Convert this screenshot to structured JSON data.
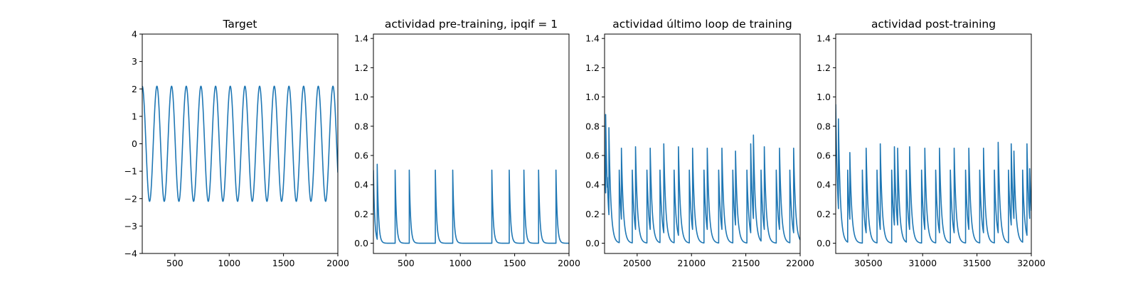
{
  "chart_data": [
    {
      "type": "line",
      "title": "Target",
      "xlabel": "",
      "ylabel": "",
      "xlim": [
        200,
        2000
      ],
      "ylim": [
        -4,
        4
      ],
      "xticks": [
        500,
        1000,
        1500,
        2000
      ],
      "yticks": [
        -4,
        -3,
        -2,
        -1,
        0,
        1,
        2,
        3,
        4
      ],
      "grid": false,
      "series": [
        {
          "kind": "sine",
          "color": "#1f77b4",
          "x_start": 200,
          "x_end": 2000,
          "amplitude": 2.1,
          "peak_x": [
            200,
            335,
            470,
            605,
            740,
            875,
            1010,
            1145,
            1280,
            1415,
            1550,
            1685,
            1820,
            1955
          ]
        }
      ]
    },
    {
      "type": "line",
      "title": "actividad pre-training, ipqif = 1",
      "xlabel": "",
      "ylabel": "",
      "xlim": [
        200,
        2000
      ],
      "ylim": [
        -0.07,
        1.43
      ],
      "xticks": [
        500,
        1000,
        1500,
        2000
      ],
      "yticks": [
        0.0,
        0.2,
        0.4,
        0.6,
        0.8,
        1.0,
        1.2,
        1.4
      ],
      "grid": false,
      "series": [
        {
          "kind": "spikes",
          "color": "#1f77b4",
          "x_start": 200,
          "x_end": 2000,
          "start_value": 0.5,
          "decay": 12,
          "spikes": [
            {
              "x": 235,
              "h": 0.54
            },
            {
              "x": 400,
              "h": 0.5
            },
            {
              "x": 530,
              "h": 0.5
            },
            {
              "x": 770,
              "h": 0.5
            },
            {
              "x": 930,
              "h": 0.5
            },
            {
              "x": 1290,
              "h": 0.5
            },
            {
              "x": 1450,
              "h": 0.5
            },
            {
              "x": 1585,
              "h": 0.5
            },
            {
              "x": 1720,
              "h": 0.5
            },
            {
              "x": 1880,
              "h": 0.5
            }
          ]
        }
      ]
    },
    {
      "type": "line",
      "title": "actividad último loop de training",
      "xlabel": "",
      "ylabel": "",
      "xlim": [
        20200,
        22000
      ],
      "ylim": [
        -0.07,
        1.43
      ],
      "xticks": [
        20500,
        21000,
        21500,
        22000
      ],
      "yticks": [
        0.0,
        0.2,
        0.4,
        0.6,
        0.8,
        1.0,
        1.2,
        1.4
      ],
      "grid": false,
      "series": [
        {
          "kind": "spikes",
          "color": "#1f77b4",
          "x_start": 20200,
          "x_end": 22000,
          "start_value": 0.6,
          "decay": 18,
          "spikes": [
            {
              "x": 20210,
              "h": 0.88
            },
            {
              "x": 20225,
              "h": 0.45
            },
            {
              "x": 20240,
              "h": 0.79
            },
            {
              "x": 20335,
              "h": 0.5
            },
            {
              "x": 20355,
              "h": 0.65
            },
            {
              "x": 20455,
              "h": 0.5
            },
            {
              "x": 20485,
              "h": 0.66
            },
            {
              "x": 20590,
              "h": 0.5
            },
            {
              "x": 20620,
              "h": 0.65
            },
            {
              "x": 20710,
              "h": 0.5
            },
            {
              "x": 20745,
              "h": 0.68
            },
            {
              "x": 20840,
              "h": 0.5
            },
            {
              "x": 20880,
              "h": 0.66
            },
            {
              "x": 20980,
              "h": 0.5
            },
            {
              "x": 21010,
              "h": 0.65
            },
            {
              "x": 21115,
              "h": 0.5
            },
            {
              "x": 21145,
              "h": 0.65
            },
            {
              "x": 21250,
              "h": 0.5
            },
            {
              "x": 21280,
              "h": 0.65
            },
            {
              "x": 21380,
              "h": 0.5
            },
            {
              "x": 21405,
              "h": 0.63
            },
            {
              "x": 21510,
              "h": 0.5
            },
            {
              "x": 21545,
              "h": 0.68
            },
            {
              "x": 21570,
              "h": 0.74
            },
            {
              "x": 21640,
              "h": 0.5
            },
            {
              "x": 21670,
              "h": 0.66
            },
            {
              "x": 21780,
              "h": 0.5
            },
            {
              "x": 21810,
              "h": 0.65
            },
            {
              "x": 21905,
              "h": 0.5
            },
            {
              "x": 21940,
              "h": 0.65
            }
          ]
        }
      ]
    },
    {
      "type": "line",
      "title": "actividad post-training",
      "xlabel": "",
      "ylabel": "",
      "xlim": [
        30200,
        32000
      ],
      "ylim": [
        -0.07,
        1.43
      ],
      "xticks": [
        30500,
        31000,
        31500,
        32000
      ],
      "yticks": [
        0.0,
        0.2,
        0.4,
        0.6,
        0.8,
        1.0,
        1.2,
        1.4
      ],
      "grid": false,
      "series": [
        {
          "kind": "spikes",
          "color": "#1f77b4",
          "x_start": 30200,
          "x_end": 32000,
          "start_value": 0.95,
          "decay": 18,
          "spikes": [
            {
              "x": 30225,
              "h": 0.85
            },
            {
              "x": 30310,
              "h": 0.5
            },
            {
              "x": 30330,
              "h": 0.62
            },
            {
              "x": 30445,
              "h": 0.5
            },
            {
              "x": 30480,
              "h": 0.65
            },
            {
              "x": 30580,
              "h": 0.5
            },
            {
              "x": 30610,
              "h": 0.68
            },
            {
              "x": 30715,
              "h": 0.5
            },
            {
              "x": 30740,
              "h": 0.66
            },
            {
              "x": 30770,
              "h": 0.65
            },
            {
              "x": 30850,
              "h": 0.5
            },
            {
              "x": 30880,
              "h": 0.66
            },
            {
              "x": 30990,
              "h": 0.5
            },
            {
              "x": 31020,
              "h": 0.65
            },
            {
              "x": 31120,
              "h": 0.5
            },
            {
              "x": 31155,
              "h": 0.65
            },
            {
              "x": 31255,
              "h": 0.5
            },
            {
              "x": 31290,
              "h": 0.65
            },
            {
              "x": 31395,
              "h": 0.5
            },
            {
              "x": 31425,
              "h": 0.65
            },
            {
              "x": 31525,
              "h": 0.5
            },
            {
              "x": 31560,
              "h": 0.65
            },
            {
              "x": 31660,
              "h": 0.5
            },
            {
              "x": 31695,
              "h": 0.69
            },
            {
              "x": 31790,
              "h": 0.5
            },
            {
              "x": 31815,
              "h": 0.68
            },
            {
              "x": 31840,
              "h": 0.63
            },
            {
              "x": 31920,
              "h": 0.5
            },
            {
              "x": 31960,
              "h": 0.68
            },
            {
              "x": 31985,
              "h": 0.51
            }
          ]
        }
      ]
    }
  ]
}
